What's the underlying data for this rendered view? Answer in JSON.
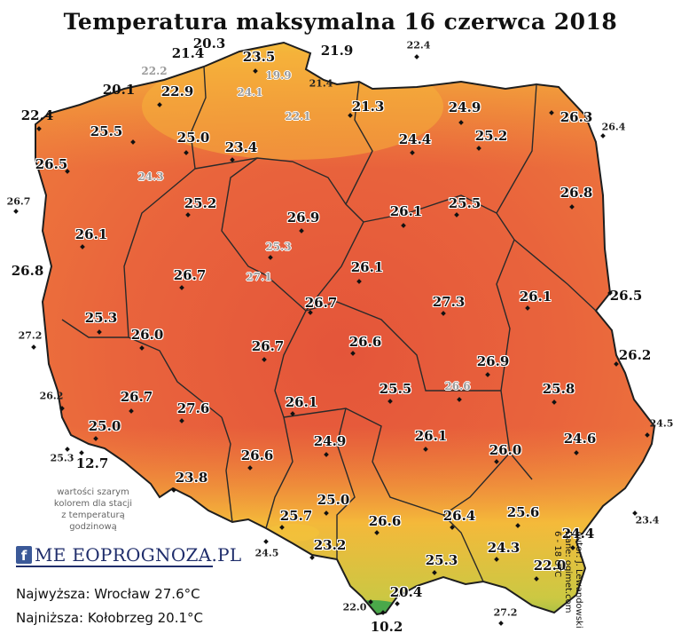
{
  "title": "Temperatura maksymalna 16 czerwca 2018",
  "legend_note": [
    "wartości szarym",
    "kolorem dla stacji",
    "z temperaturą",
    "godzinową"
  ],
  "logo": {
    "brand_text": "ME  EOPROGNOZA.PL",
    "icon": "facebook-icon"
  },
  "summary": {
    "highest": "Najwyższa: Wrocław 27.6°C",
    "lowest": "Najniższa: Kołobrzeg 20.1°C"
  },
  "credit": [
    "Autor: J. Lewandowski",
    "Dane: ogimet.com",
    "6 - 18 UTC"
  ],
  "colors": {
    "map_hot": "#e9643c",
    "map_mid": "#f08c3c",
    "map_coast": "#f5b83a",
    "mountains": "#7cc84a",
    "border": "#2a2a2a"
  },
  "stations": [
    {
      "v": "20.3",
      "t": "main"
    },
    {
      "v": "21.4",
      "t": "main"
    },
    {
      "v": "23.5",
      "t": "main"
    },
    {
      "v": "21.9",
      "t": "out"
    },
    {
      "v": "22.4",
      "t": "small"
    },
    {
      "v": "22.2",
      "t": "gray"
    },
    {
      "v": "19.9",
      "t": "gray"
    },
    {
      "v": "20.1",
      "t": "out"
    },
    {
      "v": "22.9",
      "t": "main"
    },
    {
      "v": "24.1",
      "t": "gray"
    },
    {
      "v": "21.4",
      "t": "small"
    },
    {
      "v": "22.4",
      "t": "out"
    },
    {
      "v": "22.1",
      "t": "gray"
    },
    {
      "v": "21.3",
      "t": "main"
    },
    {
      "v": "24.9",
      "t": "main"
    },
    {
      "v": "26.3",
      "t": "main"
    },
    {
      "v": "25.5",
      "t": "main"
    },
    {
      "v": "25.0",
      "t": "main"
    },
    {
      "v": "26.4",
      "t": "small"
    },
    {
      "v": "24.4",
      "t": "main"
    },
    {
      "v": "25.2",
      "t": "main"
    },
    {
      "v": "26.5",
      "t": "main"
    },
    {
      "v": "23.4",
      "t": "main"
    },
    {
      "v": "24.3",
      "t": "gray"
    },
    {
      "v": "26.7",
      "t": "small"
    },
    {
      "v": "25.2",
      "t": "main"
    },
    {
      "v": "26.8",
      "t": "main"
    },
    {
      "v": "26.9",
      "t": "main"
    },
    {
      "v": "26.1",
      "t": "main"
    },
    {
      "v": "25.5",
      "t": "main"
    },
    {
      "v": "26.1",
      "t": "main"
    },
    {
      "v": "25.3",
      "t": "gray"
    },
    {
      "v": "26.8",
      "t": "out"
    },
    {
      "v": "26.1",
      "t": "main"
    },
    {
      "v": "26.7",
      "t": "main"
    },
    {
      "v": "27.1",
      "t": "gray"
    },
    {
      "v": "27.3",
      "t": "main"
    },
    {
      "v": "26.1",
      "t": "main"
    },
    {
      "v": "26.5",
      "t": "out"
    },
    {
      "v": "25.3",
      "t": "main"
    },
    {
      "v": "26.7",
      "t": "main"
    },
    {
      "v": "27.2",
      "t": "small"
    },
    {
      "v": "26.0",
      "t": "main"
    },
    {
      "v": "26.6",
      "t": "main"
    },
    {
      "v": "26.7",
      "t": "main"
    },
    {
      "v": "26.2",
      "t": "out"
    },
    {
      "v": "26.9",
      "t": "main"
    },
    {
      "v": "26.6",
      "t": "gray"
    },
    {
      "v": "25.5",
      "t": "main"
    },
    {
      "v": "25.8",
      "t": "main"
    },
    {
      "v": "26.2",
      "t": "small"
    },
    {
      "v": "26.7",
      "t": "main"
    },
    {
      "v": "26.1",
      "t": "main"
    },
    {
      "v": "27.6",
      "t": "main"
    },
    {
      "v": "25.0",
      "t": "main"
    },
    {
      "v": "24.5",
      "t": "small"
    },
    {
      "v": "24.9",
      "t": "main"
    },
    {
      "v": "26.1",
      "t": "main"
    },
    {
      "v": "24.6",
      "t": "main"
    },
    {
      "v": "25.3",
      "t": "small"
    },
    {
      "v": "12.7",
      "t": "out"
    },
    {
      "v": "26.6",
      "t": "main"
    },
    {
      "v": "26.0",
      "t": "main"
    },
    {
      "v": "23.8",
      "t": "main"
    },
    {
      "v": "25.0",
      "t": "main"
    },
    {
      "v": "25.7",
      "t": "main"
    },
    {
      "v": "26.6",
      "t": "main"
    },
    {
      "v": "26.4",
      "t": "main"
    },
    {
      "v": "25.6",
      "t": "main"
    },
    {
      "v": "23.4",
      "t": "small"
    },
    {
      "v": "24.4",
      "t": "main"
    },
    {
      "v": "24.5",
      "t": "small"
    },
    {
      "v": "23.2",
      "t": "main"
    },
    {
      "v": "24.3",
      "t": "main"
    },
    {
      "v": "25.3",
      "t": "main"
    },
    {
      "v": "22.0",
      "t": "main"
    },
    {
      "v": "20.4",
      "t": "main"
    },
    {
      "v": "22.0",
      "t": "small"
    },
    {
      "v": "27.2",
      "t": "small"
    },
    {
      "v": "10.2",
      "t": "out"
    }
  ]
}
